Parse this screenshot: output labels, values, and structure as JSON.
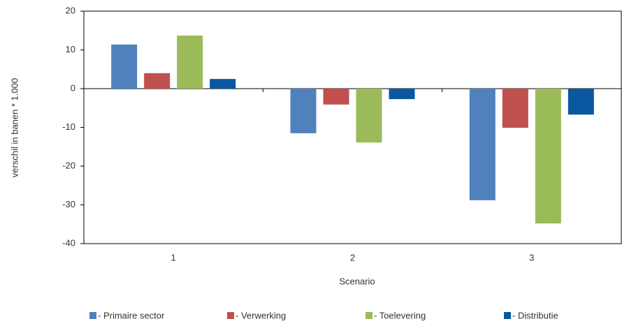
{
  "chart_data": {
    "type": "bar",
    "y_label": "verschil in banen * 1.000",
    "x_label": "Scenario",
    "categories": [
      "1",
      "2",
      "3"
    ],
    "series": [
      {
        "name": "- Primaire sector",
        "color": "#4f81bd",
        "values": [
          11.4,
          -11.5,
          -28.8
        ]
      },
      {
        "name": "- Verwerking",
        "color": "#c0504d",
        "values": [
          4.0,
          -4.1,
          -10.1
        ]
      },
      {
        "name": "- Toelevering",
        "color": "#9bbb59",
        "values": [
          13.7,
          -13.9,
          -34.8
        ]
      },
      {
        "name": "- Distributie",
        "color": "#0b57a0",
        "values": [
          2.5,
          -2.7,
          -6.7
        ]
      }
    ],
    "ylim": [
      -40,
      20
    ],
    "yticks": [
      -40,
      -30,
      -20,
      -10,
      0,
      10,
      20
    ],
    "legend": "bottom"
  }
}
